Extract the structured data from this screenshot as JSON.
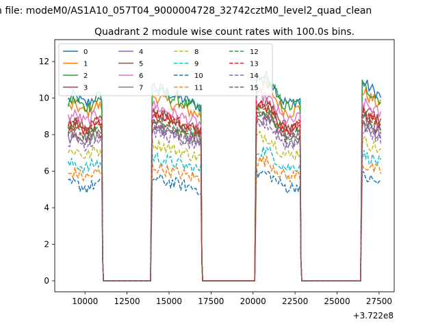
{
  "figure": {
    "suptitle": "n file: modeM0/AS1A10_057T04_9000004728_32742cztM0_level2_quad_clean",
    "offset_label": "+3.722e8"
  },
  "chart_data": {
    "type": "line",
    "title": "Quadrant 2 module wise count rates with 100.0s bins.",
    "xlabel": "",
    "ylabel": "",
    "x_offset": 372200000,
    "xlim": [
      8200,
      28400
    ],
    "ylim": [
      -0.6,
      13.2
    ],
    "xticks": [
      10000,
      12500,
      15000,
      17500,
      20000,
      22500,
      25000,
      27500
    ],
    "yticks": [
      0,
      2,
      4,
      6,
      8,
      10,
      12
    ],
    "grid": false,
    "legend": {
      "placement": "top-left",
      "columns": 4
    },
    "segments": [
      {
        "start": 9000,
        "end": 11000,
        "profile": "first"
      },
      {
        "start": 14000,
        "end": 16900,
        "profile": "second"
      },
      {
        "start": 20200,
        "end": 22800,
        "profile": "third"
      },
      {
        "start": 26500,
        "end": 27600,
        "profile": "fourth"
      }
    ],
    "gaps": [
      [
        11100,
        13900
      ],
      [
        17000,
        20100
      ],
      [
        22900,
        26400
      ]
    ],
    "bin_seconds": 100,
    "series": [
      {
        "name": "0",
        "color": "#1f77b4",
        "dash": "solid",
        "level": 9.9
      },
      {
        "name": "1",
        "color": "#ff7f0e",
        "dash": "solid",
        "level": 9.4
      },
      {
        "name": "2",
        "color": "#2ca02c",
        "dash": "solid",
        "level": 9.7
      },
      {
        "name": "3",
        "color": "#d62728",
        "dash": "solid",
        "level": 8.4
      },
      {
        "name": "4",
        "color": "#9467bd",
        "dash": "solid",
        "level": 8.0
      },
      {
        "name": "5",
        "color": "#8c564b",
        "dash": "solid",
        "level": 8.6
      },
      {
        "name": "6",
        "color": "#e377c2",
        "dash": "solid",
        "level": 8.9
      },
      {
        "name": "7",
        "color": "#7f7f7f",
        "dash": "solid",
        "level": 7.8
      },
      {
        "name": "8",
        "color": "#bcbd22",
        "dash": "dashed",
        "level": 7.0
      },
      {
        "name": "9",
        "color": "#17becf",
        "dash": "dashed",
        "level": 6.3
      },
      {
        "name": "10",
        "color": "#1f77b4",
        "dash": "dashed",
        "level": 5.2
      },
      {
        "name": "11",
        "color": "#ff7f0e",
        "dash": "dashed",
        "level": 5.8
      },
      {
        "name": "12",
        "color": "#2ca02c",
        "dash": "dashed",
        "level": 8.2
      },
      {
        "name": "13",
        "color": "#d62728",
        "dash": "dashed",
        "level": 8.5
      },
      {
        "name": "14",
        "color": "#9467bd",
        "dash": "dashed",
        "level": 7.6
      },
      {
        "name": "15",
        "color": "#8c564b",
        "dash": "dashed",
        "level": 8.0
      }
    ]
  }
}
